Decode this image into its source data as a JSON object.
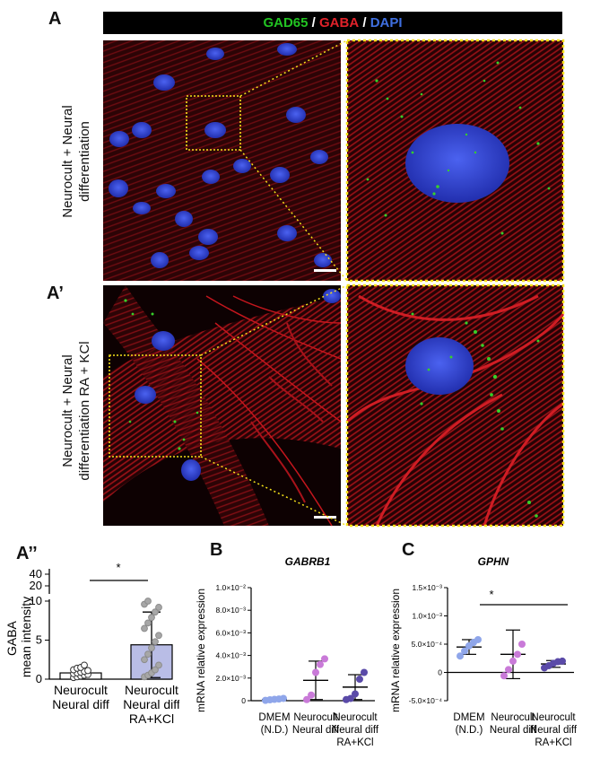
{
  "panels": {
    "a": "A",
    "a_prime": "A’",
    "a_double_prime": "A’’",
    "b": "B",
    "c": "C"
  },
  "legend": {
    "items": [
      {
        "text": "GAD65",
        "color": "#22c322"
      },
      {
        "text": " / ",
        "color": "#ffffff"
      },
      {
        "text": "GABA",
        "color": "#e0222a"
      },
      {
        "text": " / ",
        "color": "#ffffff"
      },
      {
        "text": "DAPI",
        "color": "#3f6fe0"
      }
    ]
  },
  "row_labels": {
    "a_line1": "Neurocult + Neural",
    "a_line2": "differentiation",
    "a_prime_line1": "Neurocult + Neural",
    "a_prime_line2": "differentiation RA + KCl"
  },
  "colors": {
    "gaba_red": "#c8161e",
    "dapi_blue": "#2c3fcf",
    "gad65_green": "#37d02a",
    "zoom_box": "#f5e11a",
    "bar_fill": "#b9bde6",
    "dmem_point": "#8fa6ea",
    "neural_point": "#c97ad8",
    "rakcl_point": "#5a4aa8"
  },
  "chart_data": [
    {
      "panel": "A’’",
      "type": "bar",
      "ylabel": "GABA\nmean intensity",
      "categories": [
        "Neurocult\nNeural diff",
        "Neurocult\nNeural diff\nRA+KCl"
      ],
      "values": [
        0.8,
        4.4
      ],
      "error_sd": [
        0.55,
        4.2
      ],
      "y_axis_break": true,
      "y_ticks_lower": [
        "0",
        "5",
        "10"
      ],
      "y_ticks_upper": [
        "20",
        "40"
      ],
      "significance": "*",
      "points": [
        [
          0.2,
          0.3,
          0.4,
          0.5,
          0.6,
          0.7,
          0.8,
          0.9,
          1.0,
          1.1,
          1.2,
          1.4,
          1.5,
          1.8
        ],
        [
          0.3,
          0.5,
          0.8,
          1.2,
          1.8,
          2.5,
          3.2,
          4.0,
          4.8,
          5.6,
          6.5,
          7.2,
          7.9,
          8.6,
          9.2,
          9.6,
          10.0
        ]
      ]
    },
    {
      "panel": "B",
      "type": "scatter",
      "title": "GABRB1",
      "ylabel": "mRNA relative expression",
      "categories": [
        "DMEM\n(N.D.)",
        "Neurocult\nNeural diff",
        "Neurocult\nNeural diff\nRA+KCl"
      ],
      "y_tick_labels": [
        "0",
        "2.0×10⁻³",
        "4.0×10⁻³",
        "6.0×10⁻³",
        "8.0×10⁻³",
        "1.0×10⁻²"
      ],
      "ylim": [
        0,
        0.01
      ],
      "means": [
        0.0001,
        0.0018,
        0.0012
      ],
      "sd": [
        7e-05,
        0.0017,
        0.0011
      ],
      "points": [
        [
          3e-05,
          8e-05,
          0.00012,
          0.00015,
          0.0002
        ],
        [
          0.0001,
          0.0005,
          0.0025,
          0.0032,
          0.0037
        ],
        [
          0.0001,
          0.0002,
          0.0006,
          0.0019,
          0.0025
        ]
      ]
    },
    {
      "panel": "C",
      "type": "scatter",
      "title": "GPHN",
      "ylabel": "mRNA relative expression",
      "categories": [
        "DMEM\n(N.D.)",
        "Neurocult\nNeural diff",
        "Neurocult\nNeural diff\nRA+KCl"
      ],
      "y_tick_labels": [
        "-5.0×10⁻⁴",
        "0",
        "5.0×10⁻⁴",
        "1.0×10⁻³",
        "1.5×10⁻³"
      ],
      "ylim": [
        -0.0005,
        0.0015
      ],
      "means": [
        0.00045,
        0.00032,
        0.00015
      ],
      "sd": [
        0.00013,
        0.00043,
        6e-05
      ],
      "points": [
        [
          0.00029,
          0.00038,
          0.00047,
          0.00053,
          0.00058
        ],
        [
          -6e-05,
          5e-05,
          0.0002,
          0.00032,
          0.0005
        ],
        [
          8e-05,
          0.00012,
          0.00016,
          0.00019,
          0.0002
        ]
      ],
      "significance": "*"
    }
  ]
}
